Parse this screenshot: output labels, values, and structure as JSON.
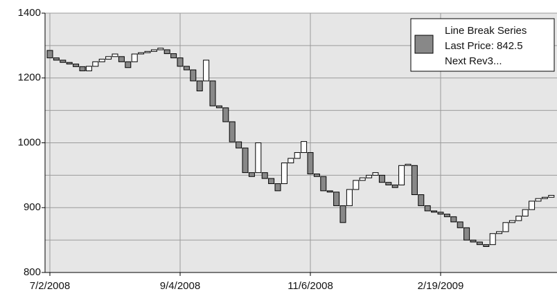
{
  "chart_data": {
    "type": "linebreak",
    "categories": [
      "7/2/2008",
      null,
      null,
      null,
      null,
      null,
      null,
      null,
      null,
      null,
      null,
      null,
      null,
      null,
      null,
      null,
      null,
      null,
      null,
      null,
      "9/4/2008",
      null,
      null,
      null,
      null,
      null,
      null,
      null,
      null,
      null,
      null,
      null,
      null,
      null,
      null,
      null,
      null,
      null,
      null,
      null,
      "11/6/2008",
      null,
      null,
      null,
      null,
      null,
      null,
      null,
      null,
      null,
      null,
      null,
      null,
      null,
      null,
      null,
      null,
      null,
      null,
      null,
      "2/19/2009",
      null,
      null,
      null,
      null,
      null,
      null,
      null,
      null,
      null,
      null,
      null,
      null,
      null,
      null,
      null,
      null,
      null
    ],
    "open": [
      1285,
      1262,
      1255,
      1248,
      1243,
      1235,
      1222,
      1236,
      1250,
      1258,
      1266,
      1266,
      1250,
      1250,
      1274,
      1278,
      1282,
      1287,
      1287,
      1275,
      1262,
      1236,
      1225,
      1191,
      1191,
      1191,
      1114,
      1108,
      1065,
      1003,
      992,
      954,
      954,
      954,
      945,
      937,
      937,
      969,
      976,
      985,
      985,
      952,
      948,
      926,
      924,
      903,
      903,
      928,
      942,
      946,
      950,
      950,
      939,
      935,
      935,
      965,
      965,
      920,
      903,
      895,
      893,
      890,
      886,
      878,
      869,
      850,
      847,
      843,
      843,
      860,
      863,
      877,
      880,
      887,
      897,
      910,
      914,
      916
    ],
    "close": [
      1262,
      1255,
      1248,
      1243,
      1235,
      1222,
      1236,
      1250,
      1258,
      1266,
      1274,
      1250,
      1232,
      1274,
      1278,
      1282,
      1287,
      1292,
      1275,
      1262,
      1236,
      1225,
      1191,
      1160,
      1255,
      1114,
      1108,
      1065,
      1003,
      992,
      954,
      948,
      1000,
      945,
      937,
      926,
      969,
      976,
      985,
      1004,
      952,
      948,
      926,
      924,
      903,
      877,
      928,
      942,
      946,
      950,
      954,
      939,
      935,
      931,
      965,
      967,
      920,
      903,
      895,
      893,
      890,
      886,
      878,
      869,
      850,
      847,
      843,
      840,
      860,
      863,
      877,
      880,
      887,
      897,
      910,
      914,
      916,
      919
    ],
    "up_color": "#ffffff",
    "down_color": "#888888",
    "ylim": [
      800,
      1400
    ],
    "yticks": [
      800,
      900,
      1000,
      1200,
      1400
    ],
    "grid": true,
    "legend": {
      "position": "upper right",
      "lines": [
        "Line Break Series",
        "Last Price: 842.5",
        "Next Rev3..."
      ]
    }
  }
}
